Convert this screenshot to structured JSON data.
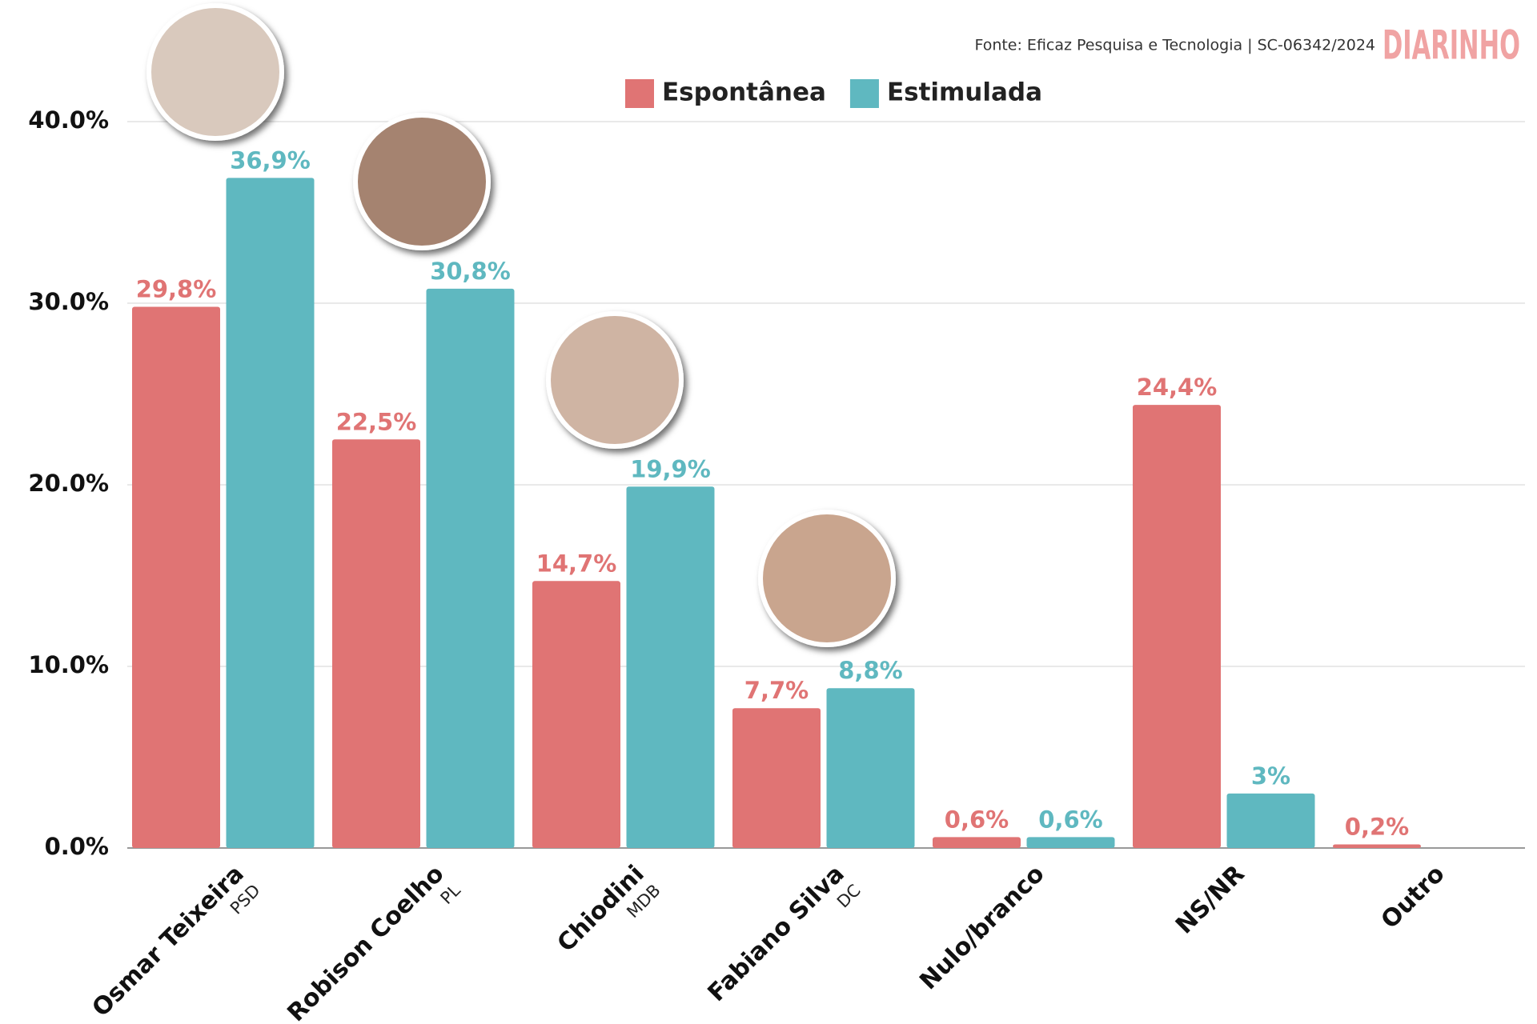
{
  "chart_data": {
    "type": "bar",
    "source": "Fonte: Eficaz Pesquisa e Tecnologia | SC-06342/2024",
    "brand": "DIARINHO",
    "categories": [
      "Osmar Teixeira",
      "Robison Coelho",
      "Chiodini",
      "Fabiano Silva",
      "Nulo/branco",
      "NS/NR",
      "Outro"
    ],
    "sublabels": [
      "PSD",
      "PL",
      "MDB",
      "DC",
      null,
      null,
      null
    ],
    "series": [
      {
        "name": "Espontânea",
        "color": "#e07474",
        "values": [
          29.8,
          22.5,
          14.7,
          7.7,
          0.6,
          24.4,
          0.2
        ],
        "value_labels": [
          "29,8%",
          "22,5%",
          "14,7%",
          "7,7%",
          "0,6%",
          "24,4%",
          "0,2%"
        ]
      },
      {
        "name": "Estimulada",
        "color": "#5fb8c0",
        "values": [
          36.9,
          30.8,
          19.9,
          8.8,
          0.6,
          3,
          null
        ],
        "value_labels": [
          "36,9%",
          "30,8%",
          "19,9%",
          "8,8%",
          "0,6%",
          "3%",
          null
        ]
      }
    ],
    "ylim": [
      0,
      40
    ],
    "yticks": [
      {
        "value": 0,
        "label": "0.0%"
      },
      {
        "value": 10,
        "label": "10.0%"
      },
      {
        "value": 20,
        "label": "20.0%"
      },
      {
        "value": 30,
        "label": "30.0%"
      },
      {
        "value": 40,
        "label": "40.0%"
      }
    ],
    "grid": true
  }
}
